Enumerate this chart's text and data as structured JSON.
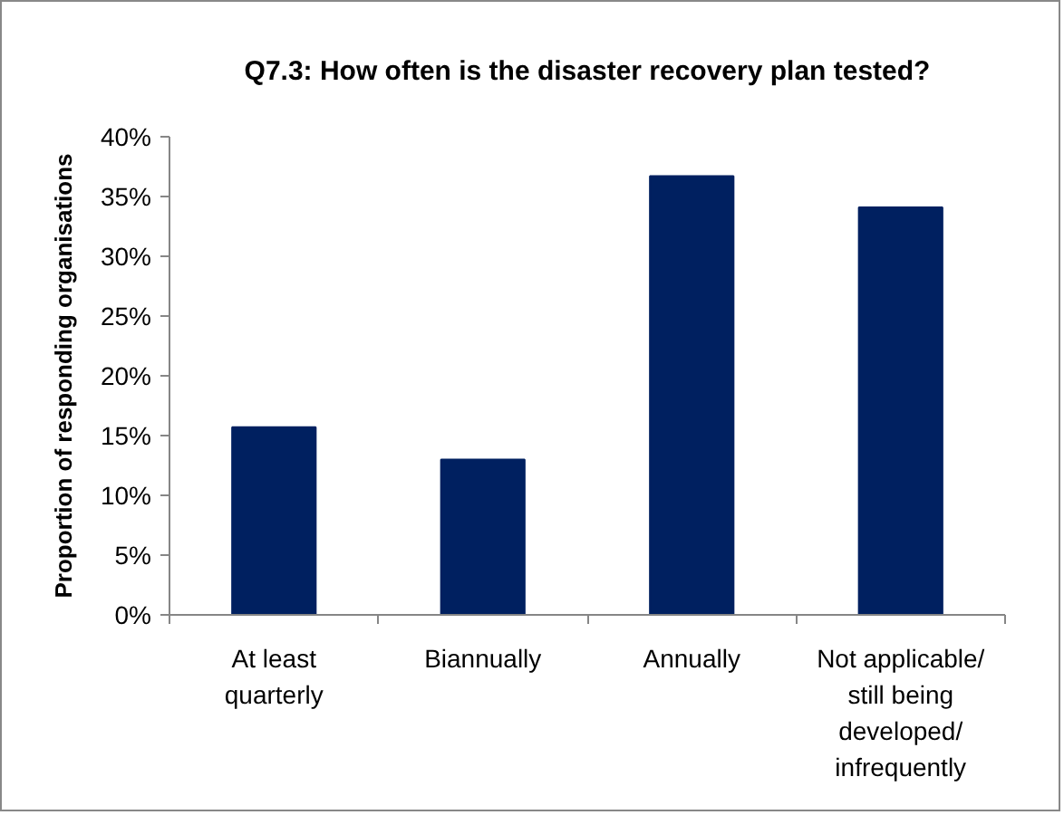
{
  "chart_data": {
    "type": "bar",
    "title": "Q7.3: How often is the disaster recovery plan tested?",
    "ylabel": "Proportion of responding organisations",
    "categories": [
      "At least quarterly",
      "Biannually",
      "Annually",
      "Not applicable/ still being developed/ infrequently"
    ],
    "values": [
      15.7,
      13.0,
      36.7,
      34.1
    ],
    "color": "#002060",
    "ylim": [
      0,
      40
    ],
    "yticks": [
      {
        "value": 0,
        "label": "0%"
      },
      {
        "value": 5,
        "label": "5%"
      },
      {
        "value": 10,
        "label": "10%"
      },
      {
        "value": 15,
        "label": "15%"
      },
      {
        "value": 20,
        "label": "20%"
      },
      {
        "value": 25,
        "label": "25%"
      },
      {
        "value": 30,
        "label": "30%"
      },
      {
        "value": 35,
        "label": "35%"
      },
      {
        "value": 40,
        "label": "40%"
      }
    ],
    "grid": false
  }
}
